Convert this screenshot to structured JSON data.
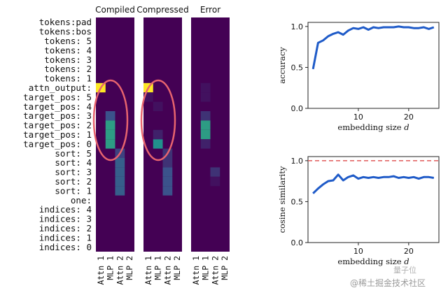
{
  "heatmap": {
    "panel_titles": [
      "Compiled",
      "Compressed",
      "Error"
    ],
    "row_labels": [
      "tokens:pad",
      "tokens:bos",
      "tokens: 5",
      "tokens: 4",
      "tokens: 3",
      "tokens: 2",
      "tokens: 1",
      "attn_output:",
      "target_pos: 5",
      "target_pos: 4",
      "target_pos: 3",
      "target_pos: 2",
      "target_pos: 1",
      "target_pos: 0",
      "sort: 5",
      "sort: 4",
      "sort: 3",
      "sort: 2",
      "sort: 1",
      "one:",
      "indices: 4",
      "indices: 3",
      "indices: 2",
      "indices: 1",
      "indices: 0"
    ],
    "col_labels": [
      "Attn 1",
      "MLP 1",
      "Attn 2",
      "MLP 2"
    ],
    "colors": {
      "background": "#440154",
      "ellipse": "#e8646e"
    }
  },
  "chart_data": [
    {
      "type": "heatmap",
      "title": "Compiled",
      "rows": 25,
      "cols": 4,
      "cells": [
        {
          "row": 7,
          "col": 0,
          "value": 1.0
        },
        {
          "row": 10,
          "col": 1,
          "value": 0.25
        },
        {
          "row": 11,
          "col": 1,
          "value": 0.55
        },
        {
          "row": 12,
          "col": 1,
          "value": 0.55
        },
        {
          "row": 13,
          "col": 1,
          "value": 0.55
        },
        {
          "row": 14,
          "col": 2,
          "value": 0.2
        },
        {
          "row": 15,
          "col": 2,
          "value": 0.3
        },
        {
          "row": 16,
          "col": 2,
          "value": 0.3
        },
        {
          "row": 17,
          "col": 2,
          "value": 0.3
        },
        {
          "row": 18,
          "col": 2,
          "value": 0.3
        }
      ]
    },
    {
      "type": "heatmap",
      "title": "Compressed",
      "rows": 25,
      "cols": 4,
      "cells": [
        {
          "row": 7,
          "col": 0,
          "value": 1.0
        },
        {
          "row": 8,
          "col": 0,
          "value": 0.05
        },
        {
          "row": 9,
          "col": 1,
          "value": 0.05
        },
        {
          "row": 13,
          "col": 1,
          "value": 0.5
        },
        {
          "row": 12,
          "col": 1,
          "value": 0.1
        },
        {
          "row": 14,
          "col": 2,
          "value": 0.15
        },
        {
          "row": 15,
          "col": 2,
          "value": 0.15
        },
        {
          "row": 16,
          "col": 2,
          "value": 0.25
        },
        {
          "row": 17,
          "col": 2,
          "value": 0.25
        },
        {
          "row": 18,
          "col": 2,
          "value": 0.25
        }
      ]
    },
    {
      "type": "heatmap",
      "title": "Error",
      "rows": 25,
      "cols": 4,
      "cells": [
        {
          "row": 7,
          "col": 1,
          "value": 0.05
        },
        {
          "row": 8,
          "col": 1,
          "value": 0.05
        },
        {
          "row": 10,
          "col": 1,
          "value": 0.15
        },
        {
          "row": 11,
          "col": 1,
          "value": 0.55
        },
        {
          "row": 12,
          "col": 1,
          "value": 0.55
        },
        {
          "row": 13,
          "col": 1,
          "value": 0.1
        },
        {
          "row": 16,
          "col": 2,
          "value": 0.15
        },
        {
          "row": 17,
          "col": 2,
          "value": 0.05
        }
      ]
    },
    {
      "type": "line",
      "xlabel": "embedding size d",
      "ylabel": "accuracy",
      "xlim": [
        0,
        26
      ],
      "ylim": [
        0,
        1.05
      ],
      "xticks": [
        10,
        20
      ],
      "yticks": [
        0.0,
        0.5,
        1.0
      ],
      "x": [
        1,
        2,
        3,
        4,
        5,
        6,
        7,
        8,
        9,
        10,
        11,
        12,
        13,
        14,
        15,
        16,
        17,
        18,
        19,
        20,
        21,
        22,
        23,
        24,
        25
      ],
      "series": [
        {
          "values": [
            0.48,
            0.8,
            0.83,
            0.88,
            0.91,
            0.93,
            0.9,
            0.95,
            0.98,
            0.97,
            0.99,
            0.96,
            0.99,
            0.98,
            0.99,
            0.99,
            0.99,
            1.0,
            0.99,
            0.99,
            0.98,
            0.98,
            0.99,
            0.97,
            0.99
          ],
          "color": "#1f5bc8"
        }
      ]
    },
    {
      "type": "line",
      "xlabel": "embedding size d",
      "ylabel": "cosine similarity",
      "xlim": [
        0,
        26
      ],
      "ylim": [
        0,
        1.05
      ],
      "xticks": [
        10,
        20
      ],
      "yticks": [
        0.0,
        0.5,
        1.0
      ],
      "reference_line": {
        "y": 1.0,
        "color": "#e05a5a",
        "style": "dashed"
      },
      "x": [
        1,
        2,
        3,
        4,
        5,
        6,
        7,
        8,
        9,
        10,
        11,
        12,
        13,
        14,
        15,
        16,
        17,
        18,
        19,
        20,
        21,
        22,
        23,
        24,
        25
      ],
      "series": [
        {
          "values": [
            0.6,
            0.66,
            0.71,
            0.75,
            0.76,
            0.83,
            0.76,
            0.8,
            0.82,
            0.78,
            0.8,
            0.79,
            0.8,
            0.79,
            0.8,
            0.8,
            0.81,
            0.79,
            0.8,
            0.79,
            0.8,
            0.78,
            0.8,
            0.8,
            0.79
          ],
          "color": "#1f5bc8"
        }
      ]
    }
  ],
  "watermark": "@稀土掘金技术社区",
  "watermark2": "量子位"
}
